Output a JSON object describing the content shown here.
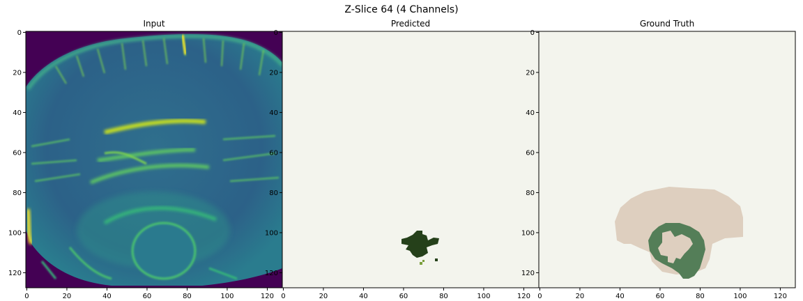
{
  "figure": {
    "suptitle": "Z-Slice 64 (4 Channels)"
  },
  "panels": [
    {
      "id": "input",
      "title": "Input",
      "description": "MRI brain slice shown with viridis colormap"
    },
    {
      "id": "predicted",
      "title": "Predicted",
      "description": "Predicted segmentation mask"
    },
    {
      "id": "ground-truth",
      "title": "Ground Truth",
      "description": "Ground truth segmentation mask"
    }
  ],
  "axes": {
    "x_ticks": [
      "0",
      "20",
      "40",
      "60",
      "80",
      "100",
      "120"
    ],
    "y_ticks": [
      "0",
      "20",
      "40",
      "60",
      "80",
      "100",
      "120"
    ],
    "tick_values": [
      0,
      20,
      40,
      60,
      80,
      100,
      120
    ],
    "range": [
      -0.5,
      127.5
    ]
  },
  "colors": {
    "input_background": "#440154",
    "input_tissue": "#31688e",
    "input_bright": "#35b779",
    "input_highlight": "#fde725",
    "mask_background": "#f3f4ed",
    "pred_tumor": "#25401a",
    "pred_speck": "#7a9e3c",
    "gt_edema": "#decfbf",
    "gt_core": "#547e58",
    "gt_center": "#f3f4ed"
  }
}
